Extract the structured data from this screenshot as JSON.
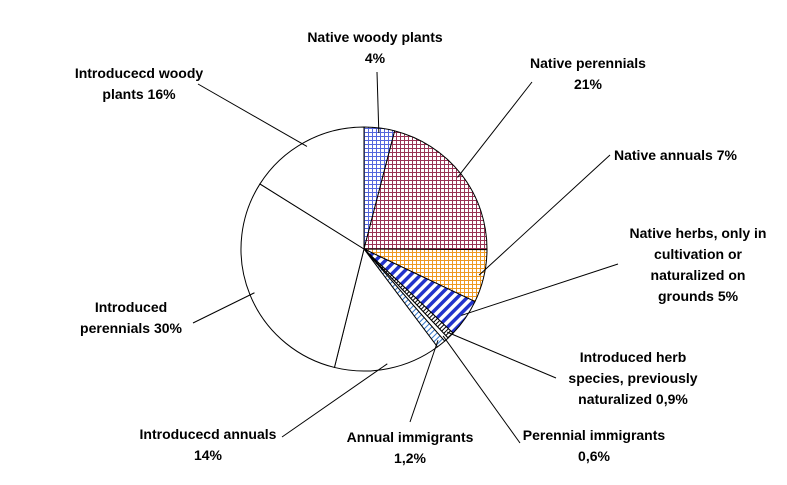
{
  "chart_data": {
    "type": "pie",
    "title": "",
    "slices": [
      {
        "label_lines": [
          "Native woody plants",
          "4%"
        ],
        "value": 4,
        "fill": "pattern-grid-blue",
        "color": "#5566dd"
      },
      {
        "label_lines": [
          "Native perennials",
          "21%"
        ],
        "value": 21,
        "fill": "pattern-grid-maroon",
        "color": "#993355"
      },
      {
        "label_lines": [
          "Native annuals 7%"
        ],
        "value": 7,
        "fill": "pattern-grid-orange",
        "color": "#ee9922"
      },
      {
        "label_lines": [
          "Native herbs, only in",
          "cultivation or",
          "naturalized on",
          "grounds 5%"
        ],
        "value": 5,
        "fill": "pattern-diag-blue",
        "color": "#2233cc"
      },
      {
        "label_lines": [
          "Introduced herb",
          "species, previously",
          "naturalized 0,9%"
        ],
        "value": 0.9,
        "fill": "pattern-diag-black",
        "color": "#000000"
      },
      {
        "label_lines": [
          "Perennial immigrants",
          "0,6%"
        ],
        "value": 0.6,
        "fill": "solid-white",
        "color": "#ffffff"
      },
      {
        "label_lines": [
          "Annual immigrants",
          "1,2%"
        ],
        "value": 1.2,
        "fill": "pattern-diag-light",
        "color": "#3377cc"
      },
      {
        "label_lines": [
          "Introducecd annuals",
          "14%"
        ],
        "value": 14,
        "fill": "solid-white",
        "color": "#ffffff"
      },
      {
        "label_lines": [
          "Introduced",
          "perennials 30%"
        ],
        "value": 30,
        "fill": "solid-white",
        "color": "#ffffff"
      },
      {
        "label_lines": [
          "Introducecd woody",
          "plants 16%"
        ],
        "value": 16,
        "fill": "solid-white",
        "color": "#ffffff"
      }
    ],
    "start_direction": "top",
    "direction": "clockwise",
    "legend": "none"
  }
}
